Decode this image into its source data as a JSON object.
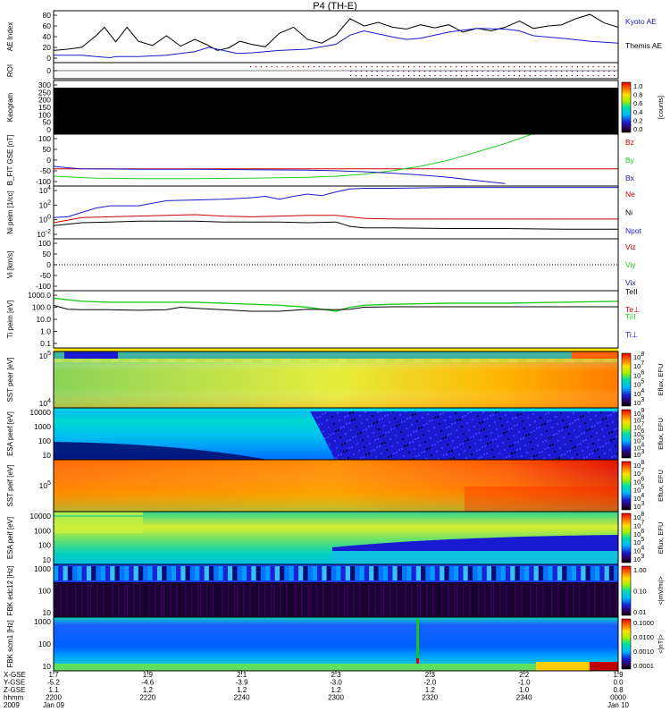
{
  "title": "P4 (TH-E)",
  "colors": {
    "black": "#000000",
    "blue": "#1a1acc",
    "red": "#cc0000",
    "green": "#22cc22"
  },
  "chart_data": [
    {
      "id": "ae",
      "type": "line",
      "ylabel": "AE Index",
      "yticks": [
        "80",
        "60",
        "40",
        "20",
        "0"
      ],
      "ylim": [
        0,
        85
      ],
      "legend": [
        "Kyoto AE",
        "Themis AE"
      ],
      "series": [
        {
          "name": "Kyoto AE",
          "color": "black",
          "x": [
            2200,
            2205,
            2210,
            2215,
            2218,
            2222,
            2226,
            2230,
            2235,
            2240,
            2245,
            2250,
            2254,
            2258,
            2262,
            2266,
            2270,
            2275,
            2280,
            2285,
            2290,
            2295,
            2300,
            2305,
            2310,
            2315,
            2320,
            2325,
            2330,
            2335,
            2340,
            2345,
            2350,
            2355,
            2360,
            2365,
            2370,
            2375,
            2380,
            2385,
            2390,
            2395,
            2400
          ],
          "y": [
            20,
            22,
            25,
            44,
            58,
            34,
            58,
            35,
            28,
            44,
            27,
            38,
            30,
            20,
            24,
            35,
            30,
            26,
            48,
            58,
            38,
            32,
            45,
            72,
            60,
            66,
            58,
            55,
            62,
            57,
            62,
            50,
            56,
            52,
            58,
            68,
            56,
            60,
            62,
            72,
            79,
            65,
            58
          ]
        },
        {
          "name": "Themis AE",
          "color": "blue",
          "x": [
            2200,
            2210,
            2215,
            2220,
            2222,
            2230,
            2240,
            2250,
            2255,
            2265,
            2270,
            2280,
            2290,
            2300,
            2305,
            2310,
            2320,
            2325,
            2330,
            2340,
            2350,
            2360,
            2365,
            2370,
            2380,
            2390,
            2400
          ],
          "y": [
            12,
            12,
            10,
            8,
            10,
            10,
            12,
            18,
            25,
            15,
            16,
            20,
            22,
            30,
            45,
            52,
            42,
            38,
            40,
            50,
            56,
            55,
            52,
            44,
            40,
            35,
            32
          ]
        }
      ]
    },
    {
      "id": "roi",
      "type": "scatter",
      "ylabel": "ROI",
      "yticks": [
        "0"
      ]
    },
    {
      "id": "keogram",
      "type": "heatmap",
      "ylabel": "Keogram",
      "yticks": [
        "300",
        "250",
        "200",
        "150",
        "100",
        "50",
        "0"
      ],
      "ylim": [
        0,
        300
      ],
      "colorbar_ticks": [
        "1.0",
        "0.8",
        "0.6",
        "0.4",
        "0.2",
        "0.0"
      ],
      "colorbar_label": "[counts]"
    },
    {
      "id": "bfield",
      "type": "line",
      "ylabel": "B_FIT GSE [nT]",
      "yticks": [
        "100",
        "50",
        "0",
        "-50",
        "-100"
      ],
      "ylim": [
        -110,
        100
      ],
      "legend": [
        "Bz",
        "By",
        "Bx"
      ],
      "series": [
        {
          "name": "Bz",
          "color": "red",
          "x": [
            2200,
            2400
          ],
          "y": [
            -40,
            -40
          ]
        },
        {
          "name": "By",
          "color": "green",
          "x": [
            2200,
            2215,
            2230,
            2250,
            2270,
            2290,
            2300,
            2310,
            2320,
            2330,
            2340,
            2350,
            2360,
            2370
          ],
          "y": [
            -70,
            -78,
            -80,
            -80,
            -78,
            -75,
            -70,
            -62,
            -48,
            -30,
            -5,
            28,
            62,
            102
          ]
        },
        {
          "name": "Bx",
          "color": "blue",
          "x": [
            2200,
            2205,
            2210,
            2230,
            2250,
            2270,
            2290,
            2300,
            2310,
            2320,
            2330,
            2340,
            2350,
            2360
          ],
          "y": [
            -30,
            -36,
            -40,
            -42,
            -42,
            -44,
            -46,
            -48,
            -52,
            -58,
            -65,
            -75,
            -88,
            -100
          ]
        }
      ]
    },
    {
      "id": "density",
      "type": "line",
      "ylabel": "Ni peim [1/cc]",
      "yticks": [
        "10^4",
        "10^2",
        "10^0",
        "10^-2"
      ],
      "legend": [
        "Ne",
        "Ni",
        "Npot"
      ],
      "series": [
        {
          "name": "Ne",
          "color": "red",
          "x": [
            2200,
            2210,
            2220,
            2230,
            2240,
            2250,
            2260,
            2270,
            2280,
            2290,
            2300,
            2310,
            2320,
            2340,
            2360,
            2380,
            2400
          ],
          "y": [
            -0.4,
            0.3,
            0.4,
            0.5,
            0.6,
            0.7,
            0.5,
            0.4,
            0.5,
            0.6,
            0.6,
            0.2,
            0.1,
            0.1,
            0.1,
            0.1,
            0.1
          ]
        },
        {
          "name": "Ni",
          "color": "blue",
          "x": [
            2200,
            2205,
            2210,
            2215,
            2220,
            2230,
            2240,
            2250,
            2260,
            2270,
            2275,
            2280,
            2285,
            2290,
            2295,
            2300,
            2305,
            2310,
            2320,
            2340,
            2360,
            2380,
            2400
          ],
          "y": [
            0.3,
            0.4,
            1.0,
            1.6,
            1.9,
            1.9,
            2.6,
            2.7,
            2.8,
            3.0,
            3.2,
            2.8,
            3.2,
            3.5,
            3.3,
            3.8,
            4.2,
            4.3,
            4.3,
            4.4,
            4.4,
            4.4,
            4.4
          ]
        },
        {
          "name": "Npot",
          "color": "black",
          "x": [
            2200,
            2210,
            2220,
            2230,
            2240,
            2250,
            2260,
            2270,
            2280,
            2290,
            2300,
            2305,
            2310,
            2320,
            2340,
            2360,
            2380,
            2400
          ],
          "y": [
            -0.8,
            -0.4,
            -0.3,
            -0.2,
            -0.2,
            -0.2,
            -0.3,
            -0.3,
            -0.3,
            -0.4,
            -0.3,
            -0.9,
            -1.1,
            -1.1,
            -1.2,
            -1.2,
            -1.3,
            -1.3
          ]
        }
      ]
    },
    {
      "id": "velocity",
      "type": "line",
      "ylabel": "Vi [km/s]",
      "yticks": [
        "100",
        "50",
        "0",
        "-50",
        "-100"
      ],
      "ylim": [
        -140,
        140
      ],
      "legend": [
        "Viz",
        "Viy",
        "Vix"
      ]
    },
    {
      "id": "temperature",
      "type": "line",
      "ylabel": "Ti peim [eV]",
      "yticks": [
        "1000.0",
        "100.0",
        "10.0",
        "1.0",
        "0.1"
      ],
      "legend": [
        "TeII",
        "Te⊥",
        "TiII",
        "Ti⊥"
      ],
      "series": [
        {
          "name": "TiII",
          "color": "green",
          "x": [
            2200,
            2210,
            2220,
            2230,
            2240,
            2250,
            2260,
            2270,
            2280,
            2290,
            2295,
            2300,
            2305,
            2310,
            2320,
            2340,
            2360,
            2380,
            2400
          ],
          "y": [
            2.9,
            2.6,
            2.5,
            2.5,
            2.5,
            2.5,
            2.4,
            2.3,
            2.2,
            2.0,
            1.8,
            1.6,
            2.0,
            2.2,
            2.3,
            2.4,
            2.4,
            2.5,
            2.6
          ]
        },
        {
          "name": "TeII",
          "color": "black",
          "x": [
            2200,
            2205,
            2210,
            2220,
            2230,
            2240,
            2245,
            2250,
            2260,
            2270,
            2280,
            2290,
            2300,
            2305,
            2310,
            2320,
            2340,
            2360,
            2380,
            2400
          ],
          "y": [
            2.2,
            1.8,
            1.75,
            1.75,
            1.7,
            1.75,
            2.0,
            1.9,
            1.75,
            1.6,
            1.6,
            1.8,
            1.75,
            1.8,
            2.0,
            2.05,
            2.05,
            2.05,
            2.05,
            2.05
          ]
        }
      ]
    },
    {
      "id": "sst_e",
      "type": "heatmap",
      "ylabel": "SST peer [eV]",
      "yticks": [
        "10^5",
        "10^4"
      ],
      "colorbar_ticks": [
        "10^8",
        "10^7",
        "10^6",
        "10^5",
        "10^4",
        "10^3"
      ],
      "colorbar_label": "Eflux, EFU"
    },
    {
      "id": "esa_e",
      "type": "heatmap",
      "ylabel": "ESA peef [eV]",
      "yticks": [
        "10000",
        "1000",
        "100",
        "10"
      ],
      "colorbar_ticks": [
        "10^9",
        "10^8",
        "10^7",
        "10^6",
        "10^5",
        "10^4",
        "10^3"
      ],
      "colorbar_label": "Eflux, EFU"
    },
    {
      "id": "sst_i",
      "type": "heatmap",
      "ylabel": "SST peif [eV]",
      "yticks": [
        "10^5"
      ],
      "colorbar_ticks": [
        "10^8",
        "10^7",
        "10^6",
        "10^5",
        "10^4",
        "10^3"
      ],
      "colorbar_label": "Eflux, EFU"
    },
    {
      "id": "esa_i",
      "type": "heatmap",
      "ylabel": "ESA peif [eV]",
      "yticks": [
        "10000",
        "1000",
        "100",
        "10"
      ],
      "colorbar_ticks": [
        "10^8",
        "10^7",
        "10^6",
        "10^5",
        "10^4",
        "10^3"
      ],
      "colorbar_label": "Eflux, EFU"
    },
    {
      "id": "fbk_e",
      "type": "heatmap",
      "ylabel": "FBK edc12 [Hz]",
      "yticks": [
        "1000",
        "100",
        "10"
      ],
      "colorbar_ticks": [
        "1.00",
        "0.10",
        "0.01"
      ],
      "colorbar_label": "<|mV/m|>"
    },
    {
      "id": "fbk_b",
      "type": "heatmap",
      "ylabel": "FBK scm1 [Hz]",
      "yticks": [
        "1000",
        "100",
        "10"
      ],
      "colorbar_ticks": [
        "0.1000",
        "0.0100",
        "0.0010",
        "0.0001"
      ],
      "colorbar_label": "<|nT|>"
    }
  ],
  "xaxis": {
    "row_labels": [
      "X-GSE",
      "Y-GSE",
      "Z-GSE",
      "hhmm",
      "2009"
    ],
    "columns": [
      {
        "vals": [
          "1.7",
          "-5.2",
          "1.1",
          "2200",
          "Jan 09"
        ]
      },
      {
        "vals": [
          "1.9",
          "-4.6",
          "1.2",
          "2220",
          ""
        ]
      },
      {
        "vals": [
          "2.1",
          "-3.9",
          "1.2",
          "2240",
          ""
        ]
      },
      {
        "vals": [
          "2.3",
          "-3.0",
          "1.2",
          "2300",
          ""
        ]
      },
      {
        "vals": [
          "2.3",
          "-2.0",
          "1.2",
          "2320",
          ""
        ]
      },
      {
        "vals": [
          "2.2",
          "-1.0",
          "1.0",
          "2340",
          ""
        ]
      },
      {
        "vals": [
          "1.9",
          "0.0",
          "0.8",
          "0000",
          "Jan 10"
        ]
      }
    ]
  }
}
